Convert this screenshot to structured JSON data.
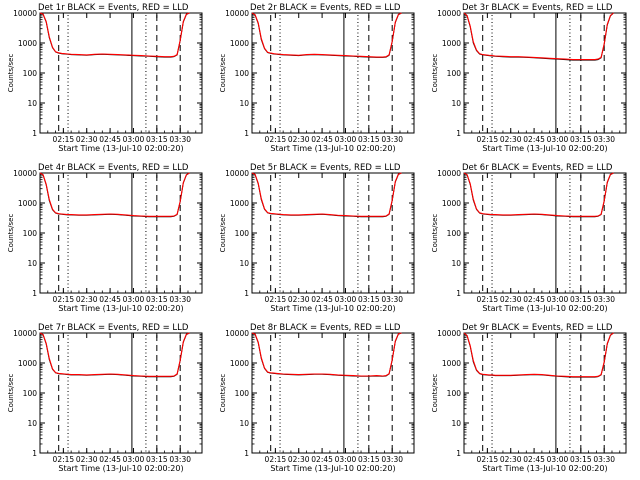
{
  "colors": {
    "events": "#000000",
    "lld": "#ff0000",
    "axes": "#000000",
    "background": "#ffffff"
  },
  "shared_axes": {
    "xlabel": "Start Time (13-Jul-10 02:00:20)",
    "ylabel": "Counts/sec",
    "x_ticks": [
      "02:15",
      "02:30",
      "02:45",
      "03:00",
      "03:15",
      "03:30"
    ],
    "y_ticks": [
      "1",
      "10",
      "100",
      "1000",
      "10000"
    ],
    "y_scale": "log",
    "ylim": [
      1,
      10000
    ],
    "xlim": [
      "02:00",
      "03:44"
    ]
  },
  "chart_data": [
    {
      "type": "line",
      "title": "Det 1r BLACK = Events, RED = LLD",
      "x": [
        "02:00",
        "02:02",
        "02:04",
        "02:06",
        "02:08",
        "02:10",
        "02:12",
        "02:14",
        "02:16",
        "02:18",
        "02:20",
        "02:25",
        "02:30",
        "02:35",
        "02:40",
        "02:45",
        "02:50",
        "02:55",
        "03:00",
        "03:05",
        "03:10",
        "03:15",
        "03:20",
        "03:24",
        "03:26",
        "03:28",
        "03:30",
        "03:32",
        "03:34",
        "03:36"
      ],
      "series": [
        {
          "name": "BLACK = Events",
          "values": [
            10000,
            9000,
            5000,
            1500,
            700,
            500,
            460,
            440,
            430,
            420,
            410,
            400,
            390,
            410,
            420,
            410,
            400,
            390,
            380,
            370,
            360,
            350,
            340,
            340,
            350,
            400,
            1200,
            5000,
            9000,
            10000
          ]
        },
        {
          "name": "RED = LLD",
          "values": [
            10000,
            9200,
            5200,
            1600,
            720,
            510,
            470,
            450,
            440,
            430,
            420,
            410,
            400,
            420,
            430,
            420,
            410,
            400,
            390,
            380,
            370,
            360,
            350,
            350,
            360,
            410,
            1250,
            5200,
            9200,
            10000
          ]
        }
      ],
      "dashed_markers": [
        "02:12",
        "03:15",
        "03:30"
      ],
      "dotted_markers": [
        "02:18",
        "03:08"
      ],
      "solid_markers": [
        "02:59"
      ]
    },
    {
      "type": "line",
      "title": "Det 2r BLACK = Events, RED = LLD",
      "x": [
        "02:00",
        "02:02",
        "02:04",
        "02:06",
        "02:08",
        "02:10",
        "02:12",
        "02:14",
        "02:16",
        "02:18",
        "02:20",
        "02:25",
        "02:30",
        "02:35",
        "02:40",
        "02:45",
        "02:50",
        "02:55",
        "03:00",
        "03:05",
        "03:10",
        "03:15",
        "03:20",
        "03:24",
        "03:26",
        "03:28",
        "03:30",
        "03:32",
        "03:34",
        "03:36"
      ],
      "series": [
        {
          "name": "BLACK = Events",
          "values": [
            10000,
            8500,
            4500,
            1300,
            650,
            480,
            450,
            430,
            420,
            410,
            400,
            390,
            380,
            400,
            410,
            400,
            390,
            380,
            370,
            360,
            350,
            340,
            330,
            330,
            340,
            390,
            1100,
            4800,
            8800,
            10000
          ]
        },
        {
          "name": "RED = LLD",
          "values": [
            10000,
            8700,
            4700,
            1400,
            670,
            490,
            460,
            440,
            430,
            420,
            410,
            400,
            390,
            410,
            420,
            410,
            400,
            390,
            380,
            370,
            360,
            350,
            340,
            340,
            350,
            400,
            1150,
            5000,
            9000,
            10000
          ]
        }
      ],
      "dashed_markers": [
        "02:12",
        "03:15",
        "03:30"
      ],
      "dotted_markers": [
        "02:18",
        "03:08"
      ],
      "solid_markers": [
        "02:59"
      ]
    },
    {
      "type": "line",
      "title": "Det 3r BLACK = Events, RED = LLD",
      "x": [
        "02:00",
        "02:02",
        "02:04",
        "02:06",
        "02:08",
        "02:10",
        "02:12",
        "02:14",
        "02:16",
        "02:18",
        "02:20",
        "02:25",
        "02:30",
        "02:35",
        "02:40",
        "02:45",
        "02:50",
        "02:55",
        "03:00",
        "03:05",
        "03:10",
        "03:15",
        "03:20",
        "03:24",
        "03:26",
        "03:28",
        "03:30",
        "03:32",
        "03:34",
        "03:36"
      ],
      "series": [
        {
          "name": "BLACK = Events",
          "values": [
            10000,
            8000,
            3500,
            1000,
            560,
            430,
            400,
            390,
            380,
            370,
            360,
            350,
            340,
            340,
            330,
            320,
            310,
            300,
            290,
            280,
            270,
            270,
            270,
            270,
            280,
            320,
            900,
            4000,
            8000,
            10000
          ]
        },
        {
          "name": "RED = LLD",
          "values": [
            10000,
            8200,
            3700,
            1100,
            580,
            440,
            410,
            400,
            390,
            380,
            370,
            360,
            350,
            350,
            340,
            330,
            320,
            310,
            300,
            290,
            280,
            280,
            280,
            280,
            290,
            330,
            950,
            4200,
            8200,
            10000
          ]
        }
      ],
      "dashed_markers": [
        "02:12",
        "03:15",
        "03:30"
      ],
      "dotted_markers": [
        "02:18",
        "03:08"
      ],
      "solid_markers": [
        "02:59"
      ]
    },
    {
      "type": "line",
      "title": "Det 4r BLACK = Events, RED = LLD",
      "x": [
        "02:00",
        "02:02",
        "02:04",
        "02:06",
        "02:08",
        "02:10",
        "02:12",
        "02:14",
        "02:16",
        "02:18",
        "02:20",
        "02:25",
        "02:30",
        "02:35",
        "02:40",
        "02:45",
        "02:50",
        "02:55",
        "03:00",
        "03:05",
        "03:10",
        "03:15",
        "03:20",
        "03:24",
        "03:26",
        "03:28",
        "03:30",
        "03:32",
        "03:34",
        "03:36"
      ],
      "series": [
        {
          "name": "BLACK = Events",
          "values": [
            10000,
            8500,
            4000,
            1200,
            600,
            460,
            430,
            420,
            410,
            400,
            400,
            390,
            390,
            400,
            410,
            420,
            410,
            390,
            370,
            360,
            350,
            350,
            350,
            350,
            360,
            410,
            1100,
            4600,
            8600,
            10000
          ]
        },
        {
          "name": "RED = LLD",
          "values": [
            10000,
            8700,
            4200,
            1300,
            620,
            470,
            440,
            430,
            420,
            410,
            410,
            400,
            400,
            410,
            420,
            430,
            420,
            400,
            380,
            370,
            360,
            360,
            360,
            360,
            370,
            420,
            1150,
            4800,
            8800,
            10000
          ]
        }
      ],
      "dashed_markers": [
        "02:12",
        "03:15",
        "03:30"
      ],
      "dotted_markers": [
        "02:18",
        "03:08"
      ],
      "solid_markers": [
        "02:59"
      ]
    },
    {
      "type": "line",
      "title": "Det 5r BLACK = Events, RED = LLD",
      "x": [
        "02:00",
        "02:02",
        "02:04",
        "02:06",
        "02:08",
        "02:10",
        "02:12",
        "02:14",
        "02:16",
        "02:18",
        "02:20",
        "02:25",
        "02:30",
        "02:35",
        "02:40",
        "02:45",
        "02:50",
        "02:55",
        "03:00",
        "03:05",
        "03:10",
        "03:15",
        "03:20",
        "03:24",
        "03:26",
        "03:28",
        "03:30",
        "03:32",
        "03:34",
        "03:36"
      ],
      "series": [
        {
          "name": "BLACK = Events",
          "values": [
            10000,
            8800,
            4400,
            1300,
            620,
            470,
            440,
            430,
            420,
            410,
            400,
            390,
            390,
            400,
            410,
            420,
            400,
            380,
            370,
            360,
            350,
            350,
            350,
            350,
            360,
            420,
            1200,
            5000,
            9000,
            10000
          ]
        },
        {
          "name": "RED = LLD",
          "values": [
            10000,
            9000,
            4600,
            1400,
            640,
            480,
            450,
            440,
            430,
            420,
            410,
            400,
            400,
            410,
            420,
            430,
            410,
            390,
            380,
            370,
            360,
            360,
            360,
            360,
            370,
            430,
            1250,
            5200,
            9200,
            10000
          ]
        }
      ],
      "dashed_markers": [
        "02:12",
        "03:15",
        "03:30"
      ],
      "dotted_markers": [
        "02:18",
        "03:08"
      ],
      "solid_markers": [
        "02:59"
      ]
    },
    {
      "type": "line",
      "title": "Det 6r BLACK = Events, RED = LLD",
      "x": [
        "02:00",
        "02:02",
        "02:04",
        "02:06",
        "02:08",
        "02:10",
        "02:12",
        "02:14",
        "02:16",
        "02:18",
        "02:20",
        "02:25",
        "02:30",
        "02:35",
        "02:40",
        "02:45",
        "02:50",
        "02:55",
        "03:00",
        "03:05",
        "03:10",
        "03:15",
        "03:20",
        "03:24",
        "03:26",
        "03:28",
        "03:30",
        "03:32",
        "03:34",
        "03:36"
      ],
      "series": [
        {
          "name": "BLACK = Events",
          "values": [
            10000,
            8600,
            4200,
            1250,
            610,
            460,
            430,
            420,
            410,
            400,
            400,
            390,
            390,
            400,
            410,
            420,
            410,
            390,
            370,
            360,
            350,
            350,
            350,
            350,
            360,
            410,
            1150,
            4800,
            8800,
            10000
          ]
        },
        {
          "name": "RED = LLD",
          "values": [
            10000,
            8800,
            4400,
            1350,
            630,
            470,
            440,
            430,
            420,
            410,
            410,
            400,
            400,
            410,
            420,
            430,
            420,
            400,
            380,
            370,
            360,
            360,
            360,
            360,
            370,
            420,
            1200,
            5000,
            9000,
            10000
          ]
        }
      ],
      "dashed_markers": [
        "02:12",
        "03:15",
        "03:30"
      ],
      "dotted_markers": [
        "02:18",
        "03:08"
      ],
      "solid_markers": [
        "02:59"
      ]
    },
    {
      "type": "line",
      "title": "Det 7r BLACK = Events, RED = LLD",
      "x": [
        "02:00",
        "02:02",
        "02:04",
        "02:06",
        "02:08",
        "02:10",
        "02:12",
        "02:14",
        "02:16",
        "02:18",
        "02:20",
        "02:25",
        "02:30",
        "02:35",
        "02:40",
        "02:45",
        "02:50",
        "02:55",
        "03:00",
        "03:05",
        "03:10",
        "03:15",
        "03:20",
        "03:24",
        "03:26",
        "03:28",
        "03:30",
        "03:32",
        "03:34",
        "03:36"
      ],
      "series": [
        {
          "name": "BLACK = Events",
          "values": [
            10000,
            8700,
            4300,
            1300,
            620,
            470,
            440,
            430,
            420,
            410,
            400,
            400,
            390,
            400,
            410,
            420,
            410,
            390,
            370,
            360,
            350,
            350,
            350,
            350,
            360,
            420,
            1200,
            4900,
            8900,
            10000
          ]
        },
        {
          "name": "RED = LLD",
          "values": [
            10000,
            8900,
            4500,
            1400,
            640,
            480,
            450,
            440,
            430,
            420,
            410,
            410,
            400,
            410,
            420,
            430,
            420,
            400,
            380,
            370,
            360,
            360,
            360,
            360,
            370,
            430,
            1250,
            5100,
            9100,
            10000
          ]
        }
      ],
      "dashed_markers": [
        "02:12",
        "03:15",
        "03:30"
      ],
      "dotted_markers": [
        "02:18",
        "03:08"
      ],
      "solid_markers": [
        "02:59"
      ]
    },
    {
      "type": "line",
      "title": "Det 8r BLACK = Events, RED = LLD",
      "x": [
        "02:00",
        "02:02",
        "02:04",
        "02:06",
        "02:08",
        "02:10",
        "02:12",
        "02:14",
        "02:16",
        "02:18",
        "02:20",
        "02:25",
        "02:30",
        "02:35",
        "02:40",
        "02:45",
        "02:50",
        "02:55",
        "03:00",
        "03:05",
        "03:10",
        "03:15",
        "03:20",
        "03:24",
        "03:26",
        "03:28",
        "03:30",
        "03:32",
        "03:34",
        "03:36"
      ],
      "series": [
        {
          "name": "BLACK = Events",
          "values": [
            10000,
            9000,
            4800,
            1400,
            660,
            490,
            460,
            450,
            440,
            430,
            420,
            410,
            400,
            410,
            420,
            420,
            410,
            390,
            380,
            370,
            360,
            360,
            370,
            360,
            370,
            430,
            1250,
            5200,
            9200,
            10000
          ]
        },
        {
          "name": "RED = LLD",
          "values": [
            10000,
            9200,
            5000,
            1500,
            680,
            500,
            470,
            460,
            450,
            440,
            430,
            420,
            410,
            420,
            430,
            430,
            420,
            400,
            390,
            380,
            370,
            370,
            380,
            370,
            380,
            440,
            1300,
            5400,
            9400,
            10000
          ]
        }
      ],
      "dashed_markers": [
        "02:12",
        "03:15",
        "03:30"
      ],
      "dotted_markers": [
        "02:18",
        "03:08"
      ],
      "solid_markers": [
        "02:59"
      ]
    },
    {
      "type": "line",
      "title": "Det 9r BLACK = Events, RED = LLD",
      "x": [
        "02:00",
        "02:02",
        "02:04",
        "02:06",
        "02:08",
        "02:10",
        "02:12",
        "02:14",
        "02:16",
        "02:18",
        "02:20",
        "02:25",
        "02:30",
        "02:35",
        "02:40",
        "02:45",
        "02:50",
        "02:55",
        "03:00",
        "03:05",
        "03:10",
        "03:15",
        "03:20",
        "03:24",
        "03:26",
        "03:28",
        "03:30",
        "03:32",
        "03:34",
        "03:36"
      ],
      "series": [
        {
          "name": "BLACK = Events",
          "values": [
            10000,
            8000,
            3600,
            1100,
            570,
            440,
            410,
            400,
            390,
            390,
            380,
            380,
            380,
            390,
            400,
            410,
            400,
            380,
            360,
            350,
            340,
            340,
            340,
            340,
            350,
            400,
            1050,
            4300,
            8300,
            10000
          ]
        },
        {
          "name": "RED = LLD",
          "values": [
            10000,
            8200,
            3800,
            1200,
            590,
            450,
            420,
            410,
            400,
            400,
            390,
            390,
            390,
            400,
            410,
            420,
            410,
            390,
            370,
            360,
            350,
            350,
            350,
            350,
            360,
            410,
            1100,
            4500,
            8500,
            10000
          ]
        }
      ],
      "dashed_markers": [
        "02:12",
        "03:15",
        "03:30"
      ],
      "dotted_markers": [
        "02:18",
        "03:08"
      ],
      "solid_markers": [
        "02:59"
      ]
    }
  ]
}
